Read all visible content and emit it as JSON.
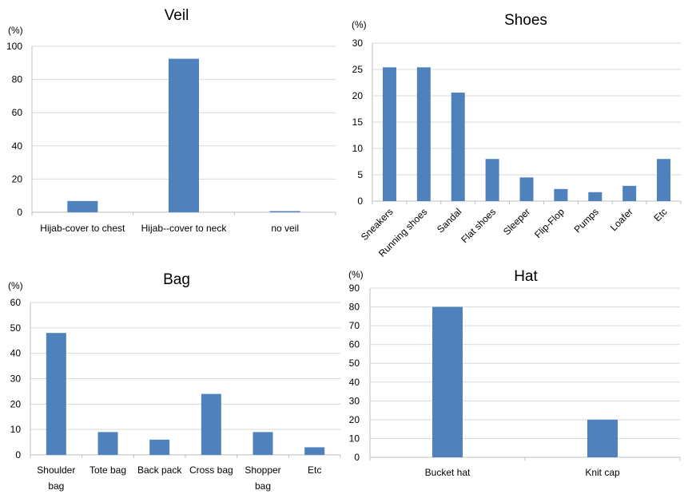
{
  "chart_data": [
    {
      "type": "bar",
      "title": "Veil",
      "unit_label": "(%)",
      "categories": [
        "Hijab-cover to chest",
        "Hijab--cover to neck",
        "no veil"
      ],
      "values": [
        6.8,
        92.5,
        0.7
      ],
      "ylim": [
        0,
        100
      ],
      "yticks": [
        "0",
        "20",
        "40",
        "60",
        "80",
        "100"
      ],
      "ytick_values": [
        0,
        20,
        40,
        60,
        80,
        100
      ],
      "grid": true,
      "bar_color": "#4f81bd"
    },
    {
      "type": "bar",
      "title": "Shoes",
      "unit_label": "(%)",
      "categories": [
        "Sneakers",
        "Running shoes",
        "Sandal",
        "Flat shoes",
        "Sleeper",
        "Flip-Flop",
        "Pumps",
        "Loafer",
        "Etc"
      ],
      "values": [
        25.4,
        25.4,
        20.6,
        8.0,
        4.5,
        2.3,
        1.7,
        2.9,
        8.0
      ],
      "ylim": [
        0,
        30
      ],
      "yticks": [
        "0",
        "5",
        "10",
        "15",
        "20",
        "25",
        "30"
      ],
      "ytick_values": [
        0,
        5,
        10,
        15,
        20,
        25,
        30
      ],
      "grid": true,
      "bar_color": "#4f81bd"
    },
    {
      "type": "bar",
      "title": "Bag",
      "unit_label": "(%)",
      "categories": [
        [
          "Shoulder",
          "bag"
        ],
        [
          "Tote bag"
        ],
        [
          "Back pack"
        ],
        [
          "Cross bag"
        ],
        [
          "Shopper",
          "bag"
        ],
        [
          "Etc"
        ]
      ],
      "values": [
        48.0,
        9.0,
        6.0,
        24.0,
        9.0,
        3.0
      ],
      "ylim": [
        0,
        60
      ],
      "yticks": [
        "0",
        "10",
        "20",
        "30",
        "40",
        "50",
        "60"
      ],
      "ytick_values": [
        0,
        10,
        20,
        30,
        40,
        50,
        60
      ],
      "grid": true,
      "bar_color": "#4f81bd"
    },
    {
      "type": "bar",
      "title": "Hat",
      "unit_label": "(%)",
      "categories": [
        "Bucket hat",
        "Knit cap"
      ],
      "values": [
        80.0,
        20.0
      ],
      "ylim": [
        0,
        90
      ],
      "yticks": [
        "0",
        "10",
        "20",
        "30",
        "40",
        "50",
        "60",
        "70",
        "80",
        "90"
      ],
      "ytick_values": [
        0,
        10,
        20,
        30,
        40,
        50,
        60,
        70,
        80,
        90
      ],
      "grid": true,
      "bar_color": "#4f81bd"
    }
  ]
}
